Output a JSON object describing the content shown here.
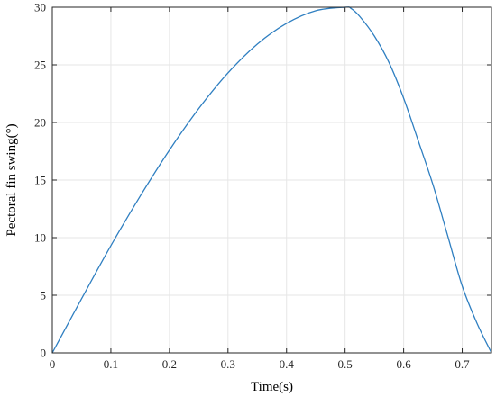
{
  "chart_data": {
    "type": "line",
    "xlabel": "Time(s)",
    "ylabel": "Pectoral fin swing(°)",
    "xlim": [
      0,
      0.75
    ],
    "ylim": [
      0,
      30
    ],
    "x_ticks": [
      0,
      0.1,
      0.2,
      0.3,
      0.4,
      0.5,
      0.6,
      0.7
    ],
    "x_tick_labels": [
      "0",
      "0.1",
      "0.2",
      "0.3",
      "0.4",
      "0.5",
      "0.6",
      "0.7"
    ],
    "y_ticks": [
      0,
      5,
      10,
      15,
      20,
      25,
      30
    ],
    "y_tick_labels": [
      "0",
      "5",
      "10",
      "15",
      "20",
      "25",
      "30"
    ],
    "grid": true,
    "series": [
      {
        "color": "#2f7fc1",
        "x": [
          0,
          0.05,
          0.1,
          0.15,
          0.2,
          0.25,
          0.3,
          0.35,
          0.4,
          0.45,
          0.5,
          0.51,
          0.525,
          0.55,
          0.575,
          0.6,
          0.625,
          0.65,
          0.675,
          0.7,
          0.725,
          0.75
        ],
        "y": [
          0,
          4.7,
          9.3,
          13.6,
          17.6,
          21.2,
          24.3,
          26.8,
          28.6,
          29.7,
          30,
          29.9,
          29.2,
          27.5,
          25.2,
          22.1,
          18.4,
          14.6,
          10.2,
          5.8,
          2.6,
          0
        ]
      }
    ]
  }
}
